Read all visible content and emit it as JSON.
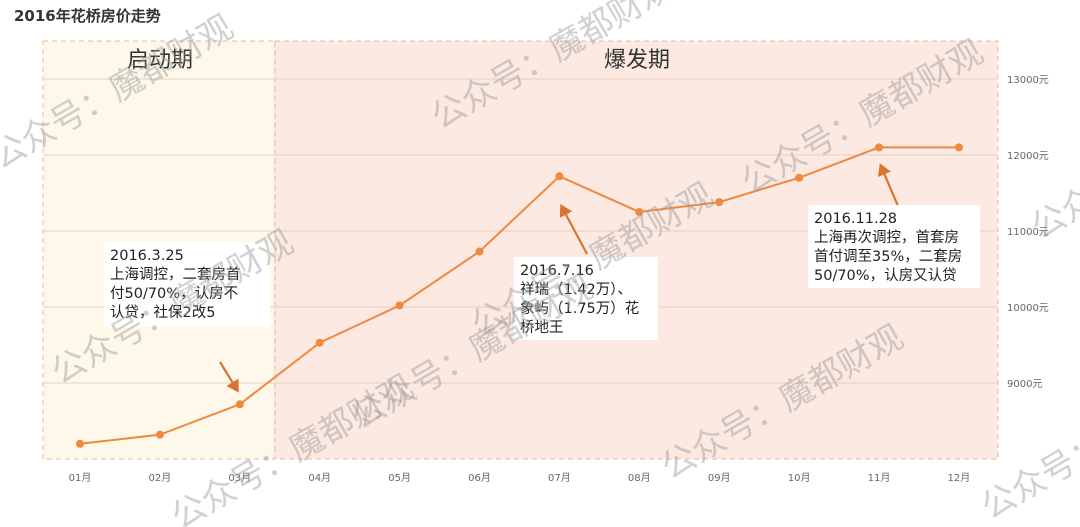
{
  "chart_data": {
    "type": "line",
    "title": "2016年花桥房价走势",
    "categories": [
      "01月",
      "02月",
      "03月",
      "04月",
      "05月",
      "06月",
      "07月",
      "08月",
      "09月",
      "10月",
      "11月",
      "12月"
    ],
    "series": [
      {
        "values": [
          8200,
          8320,
          8720,
          9530,
          10020,
          10730,
          11720,
          11250,
          11380,
          11700,
          12100,
          12100
        ]
      }
    ],
    "ylim": [
      8000,
      13500
    ],
    "y_ticks": [
      {
        "value": 9000,
        "label": "9000元"
      },
      {
        "value": 10000,
        "label": "10000元"
      },
      {
        "value": 11000,
        "label": "11000元"
      },
      {
        "value": 12000,
        "label": "12000元"
      },
      {
        "value": 13000,
        "label": "13000元"
      }
    ],
    "line_color": "#f0883e",
    "phases": [
      {
        "label": "启动期",
        "from": 0,
        "to": 2,
        "color": "#fdf8e9"
      },
      {
        "label": "爆发期",
        "from": 3,
        "to": 11,
        "color": "#fce9e1"
      }
    ],
    "annotations": [
      {
        "point": 2,
        "lines": [
          "2016.3.25",
          "上海调控，二套房首",
          "付50/70%，认房不",
          "认贷，社保2改5"
        ]
      },
      {
        "point": 6,
        "lines": [
          "2016.7.16",
          "祥瑞（1.42万）、",
          "象屿（1.75万）花",
          "桥地王"
        ]
      },
      {
        "point": 10,
        "lines": [
          "2016.11.28",
          "上海再次调控，首套房",
          "首付调至35%，二套房",
          "50/70%，认房又认贷"
        ]
      }
    ],
    "grid": true,
    "y_axis_position": "right"
  },
  "watermark": "公众号：魔都财观"
}
